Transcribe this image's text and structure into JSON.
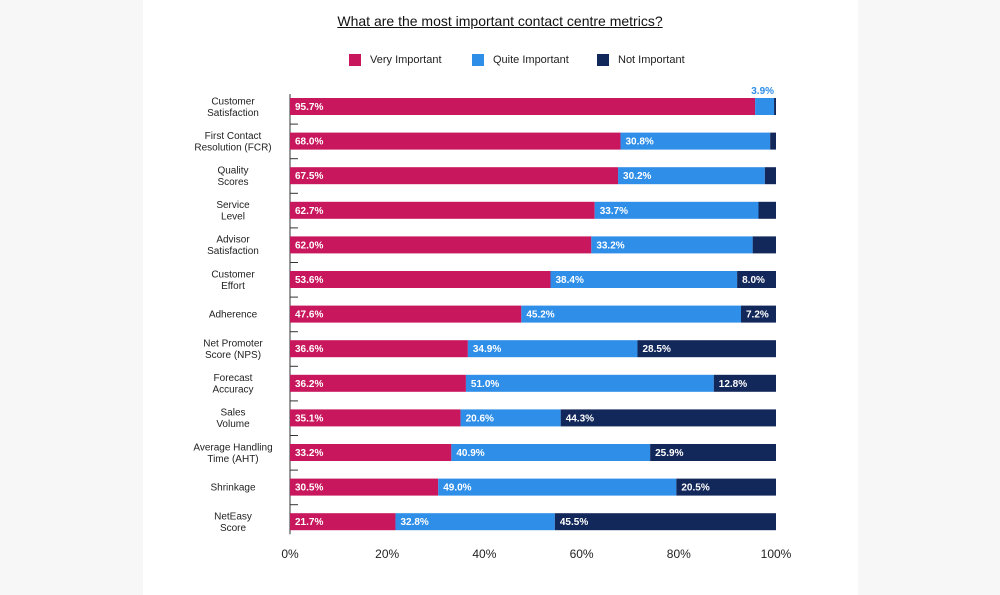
{
  "chart_data": {
    "type": "bar",
    "orientation": "horizontal",
    "stacked": true,
    "title": "What are the most important contact centre metrics?",
    "categories": [
      [
        "Customer",
        "Satisfaction"
      ],
      [
        "First Contact",
        "Resolution (FCR)"
      ],
      [
        "Quality",
        "Scores"
      ],
      [
        "Service",
        "Level"
      ],
      [
        "Advisor",
        "Satisfaction"
      ],
      [
        "Customer",
        "Effort"
      ],
      [
        "Adherence"
      ],
      [
        "Net Promoter",
        "Score (NPS)"
      ],
      [
        "Forecast",
        "Accuracy"
      ],
      [
        "Sales",
        "Volume"
      ],
      [
        "Average Handling",
        "Time (AHT)"
      ],
      [
        "Shrinkage"
      ],
      [
        "NetEasy",
        "Score"
      ]
    ],
    "series": [
      {
        "name": "Very Important",
        "color": "#c8175d",
        "values": [
          95.7,
          68.0,
          67.5,
          62.7,
          62.0,
          53.6,
          47.6,
          36.6,
          36.2,
          35.1,
          33.2,
          30.5,
          21.7
        ],
        "labels": [
          "95.7%",
          "68.0%",
          "67.5%",
          "62.7%",
          "62.0%",
          "53.6%",
          "47.6%",
          "36.6%",
          "36.2%",
          "35.1%",
          "33.2%",
          "30.5%",
          "21.7%"
        ]
      },
      {
        "name": "Quite Important",
        "color": "#2e8ee8",
        "values": [
          3.9,
          30.8,
          30.2,
          33.7,
          33.2,
          38.4,
          45.2,
          34.9,
          51.0,
          20.6,
          40.9,
          49.0,
          32.8
        ],
        "labels": [
          "3.9%",
          "30.8%",
          "30.2%",
          "33.7%",
          "33.2%",
          "38.4%",
          "45.2%",
          "34.9%",
          "51.0%",
          "20.6%",
          "40.9%",
          "49.0%",
          "32.8%"
        ]
      },
      {
        "name": "Not Important",
        "color": "#13285a",
        "values": [
          0.4,
          1.2,
          2.3,
          3.6,
          4.8,
          8.0,
          7.2,
          28.5,
          12.8,
          44.3,
          25.9,
          20.5,
          45.5
        ],
        "labels": [
          "",
          "",
          "",
          "",
          "",
          "8.0%",
          "7.2%",
          "28.5%",
          "12.8%",
          "44.3%",
          "25.9%",
          "20.5%",
          "45.5%"
        ]
      }
    ],
    "xlim": [
      0,
      100
    ],
    "xticks": [
      "0%",
      "20%",
      "40%",
      "60%",
      "80%",
      "100%"
    ],
    "xtick_values": [
      0,
      20,
      40,
      60,
      80,
      100
    ],
    "legend_position": "top-center",
    "grid": false
  }
}
